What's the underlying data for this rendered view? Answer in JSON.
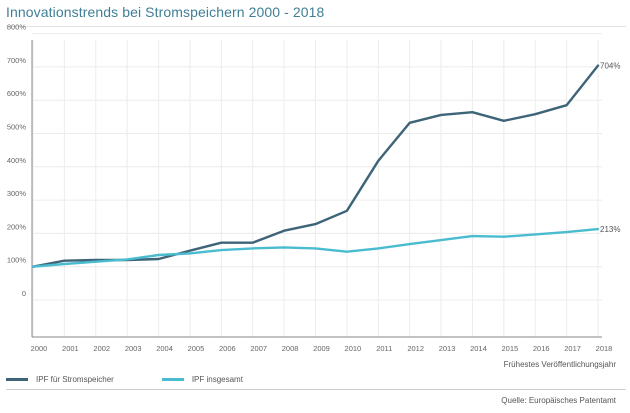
{
  "chart_data": {
    "type": "line",
    "title": "Innovationstrends bei Stromspeichern 2000 - 2018",
    "xlabel": "Frühestes Veröffentlichungsjahr",
    "ylabel": "",
    "x": [
      "2000",
      "2001",
      "2002",
      "2003",
      "2004",
      "2005",
      "2006",
      "2007",
      "2008",
      "2009",
      "2010",
      "2011",
      "2012",
      "2013",
      "2014",
      "2015",
      "2016",
      "2017",
      "2018"
    ],
    "yticks": [
      "0",
      "100%",
      "200%",
      "300%",
      "400%",
      "500%",
      "600%",
      "700%",
      "800%"
    ],
    "ylim": [
      0,
      900
    ],
    "grid": true,
    "legend_position": "bottom-left",
    "series": [
      {
        "name": "IPF für Stromspeicher",
        "color": "#3e6478",
        "values": [
          100,
          118,
          120,
          120,
          123,
          148,
          172,
          172,
          208,
          228,
          268,
          418,
          532,
          556,
          564,
          538,
          558,
          585,
          704
        ],
        "end_label": "704%"
      },
      {
        "name": "IPF insgesamt",
        "color": "#49bccf",
        "values": [
          100,
          108,
          115,
          122,
          135,
          140,
          150,
          155,
          158,
          155,
          145,
          155,
          168,
          180,
          192,
          190,
          197,
          204,
          213
        ],
        "end_label": "213%"
      }
    ]
  },
  "source": "Quelle: Europäisches Patentamt"
}
